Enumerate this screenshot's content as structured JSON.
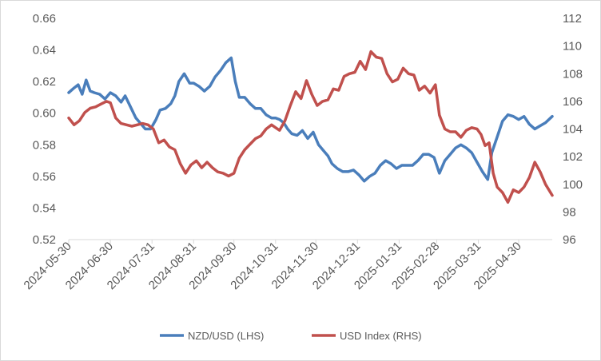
{
  "chart_data": {
    "type": "line",
    "title": "",
    "xlabel": "",
    "ylabel_left": "",
    "ylabel_right": "",
    "y_left_lim": [
      0.52,
      0.66
    ],
    "y_right_lim": [
      96,
      112
    ],
    "y_left_ticks": [
      "0.52",
      "0.54",
      "0.56",
      "0.58",
      "0.60",
      "0.62",
      "0.64",
      "0.66"
    ],
    "y_right_ticks": [
      "96",
      "98",
      "100",
      "102",
      "104",
      "106",
      "108",
      "110",
      "112"
    ],
    "x_lim": [
      "2024-05-30",
      "2025-05-25"
    ],
    "x_ticks": [
      "2024-05-30",
      "2024-06-30",
      "2024-07-31",
      "2024-08-31",
      "2024-09-30",
      "2024-10-31",
      "2024-11-30",
      "2024-12-31",
      "2025-01-31",
      "2025-02-28",
      "2025-03-31",
      "2025-04-30"
    ],
    "grid": false,
    "legend_position": "bottom",
    "series": [
      {
        "name": "NZD/USD (LHS)",
        "axis": "left",
        "color": "#4a7ebb",
        "points": [
          [
            "2024-05-30",
            0.613
          ],
          [
            "2024-06-03",
            0.616
          ],
          [
            "2024-06-06",
            0.618
          ],
          [
            "2024-06-09",
            0.612
          ],
          [
            "2024-06-12",
            0.621
          ],
          [
            "2024-06-15",
            0.614
          ],
          [
            "2024-06-18",
            0.613
          ],
          [
            "2024-06-22",
            0.612
          ],
          [
            "2024-06-26",
            0.609
          ],
          [
            "2024-06-30",
            0.613
          ],
          [
            "2024-07-04",
            0.611
          ],
          [
            "2024-07-08",
            0.607
          ],
          [
            "2024-07-11",
            0.611
          ],
          [
            "2024-07-15",
            0.604
          ],
          [
            "2024-07-19",
            0.597
          ],
          [
            "2024-07-22",
            0.594
          ],
          [
            "2024-07-26",
            0.59
          ],
          [
            "2024-07-30",
            0.59
          ],
          [
            "2024-08-03",
            0.596
          ],
          [
            "2024-08-06",
            0.602
          ],
          [
            "2024-08-10",
            0.603
          ],
          [
            "2024-08-14",
            0.606
          ],
          [
            "2024-08-17",
            0.611
          ],
          [
            "2024-08-20",
            0.62
          ],
          [
            "2024-08-24",
            0.625
          ],
          [
            "2024-08-28",
            0.619
          ],
          [
            "2024-08-31",
            0.619
          ],
          [
            "2024-09-04",
            0.617
          ],
          [
            "2024-09-08",
            0.614
          ],
          [
            "2024-09-12",
            0.617
          ],
          [
            "2024-09-16",
            0.623
          ],
          [
            "2024-09-20",
            0.627
          ],
          [
            "2024-09-24",
            0.632
          ],
          [
            "2024-09-28",
            0.635
          ],
          [
            "2024-10-01",
            0.62
          ],
          [
            "2024-10-04",
            0.61
          ],
          [
            "2024-10-08",
            0.61
          ],
          [
            "2024-10-12",
            0.606
          ],
          [
            "2024-10-16",
            0.603
          ],
          [
            "2024-10-20",
            0.603
          ],
          [
            "2024-10-24",
            0.599
          ],
          [
            "2024-10-28",
            0.597
          ],
          [
            "2024-10-31",
            0.597
          ],
          [
            "2024-11-03",
            0.596
          ],
          [
            "2024-11-06",
            0.594
          ],
          [
            "2024-11-09",
            0.59
          ],
          [
            "2024-11-12",
            0.587
          ],
          [
            "2024-11-16",
            0.586
          ],
          [
            "2024-11-20",
            0.589
          ],
          [
            "2024-11-24",
            0.584
          ],
          [
            "2024-11-28",
            0.588
          ],
          [
            "2024-12-02",
            0.58
          ],
          [
            "2024-12-06",
            0.576
          ],
          [
            "2024-12-09",
            0.573
          ],
          [
            "2024-12-12",
            0.568
          ],
          [
            "2024-12-16",
            0.565
          ],
          [
            "2024-12-20",
            0.563
          ],
          [
            "2024-12-24",
            0.563
          ],
          [
            "2024-12-28",
            0.564
          ],
          [
            "2025-01-01",
            0.561
          ],
          [
            "2025-01-05",
            0.557
          ],
          [
            "2025-01-09",
            0.56
          ],
          [
            "2025-01-13",
            0.562
          ],
          [
            "2025-01-17",
            0.567
          ],
          [
            "2025-01-21",
            0.57
          ],
          [
            "2025-01-25",
            0.568
          ],
          [
            "2025-01-29",
            0.565
          ],
          [
            "2025-02-02",
            0.567
          ],
          [
            "2025-02-06",
            0.567
          ],
          [
            "2025-02-10",
            0.567
          ],
          [
            "2025-02-14",
            0.57
          ],
          [
            "2025-02-18",
            0.574
          ],
          [
            "2025-02-22",
            0.574
          ],
          [
            "2025-02-26",
            0.572
          ],
          [
            "2025-03-02",
            0.562
          ],
          [
            "2025-03-06",
            0.57
          ],
          [
            "2025-03-10",
            0.574
          ],
          [
            "2025-03-14",
            0.578
          ],
          [
            "2025-03-18",
            0.58
          ],
          [
            "2025-03-22",
            0.578
          ],
          [
            "2025-03-26",
            0.575
          ],
          [
            "2025-03-30",
            0.569
          ],
          [
            "2025-04-03",
            0.563
          ],
          [
            "2025-04-07",
            0.558
          ],
          [
            "2025-04-10",
            0.575
          ],
          [
            "2025-04-14",
            0.585
          ],
          [
            "2025-04-18",
            0.595
          ],
          [
            "2025-04-22",
            0.599
          ],
          [
            "2025-04-26",
            0.598
          ],
          [
            "2025-04-30",
            0.596
          ],
          [
            "2025-05-04",
            0.598
          ],
          [
            "2025-05-08",
            0.593
          ],
          [
            "2025-05-12",
            0.59
          ],
          [
            "2025-05-16",
            0.592
          ],
          [
            "2025-05-20",
            0.594
          ],
          [
            "2025-05-25",
            0.598
          ]
        ]
      },
      {
        "name": "USD Index (RHS)",
        "axis": "right",
        "color": "#c0504d",
        "points": [
          [
            "2024-05-30",
            104.8
          ],
          [
            "2024-06-03",
            104.3
          ],
          [
            "2024-06-07",
            104.6
          ],
          [
            "2024-06-11",
            105.2
          ],
          [
            "2024-06-15",
            105.5
          ],
          [
            "2024-06-19",
            105.6
          ],
          [
            "2024-06-23",
            105.8
          ],
          [
            "2024-06-27",
            106.0
          ],
          [
            "2024-06-30",
            105.9
          ],
          [
            "2024-07-04",
            104.8
          ],
          [
            "2024-07-08",
            104.4
          ],
          [
            "2024-07-12",
            104.3
          ],
          [
            "2024-07-16",
            104.2
          ],
          [
            "2024-07-20",
            104.3
          ],
          [
            "2024-07-24",
            104.4
          ],
          [
            "2024-07-28",
            104.3
          ],
          [
            "2024-08-01",
            104.0
          ],
          [
            "2024-08-05",
            103.0
          ],
          [
            "2024-08-09",
            103.2
          ],
          [
            "2024-08-13",
            102.7
          ],
          [
            "2024-08-17",
            102.5
          ],
          [
            "2024-08-21",
            101.5
          ],
          [
            "2024-08-25",
            100.8
          ],
          [
            "2024-08-29",
            101.4
          ],
          [
            "2024-09-02",
            101.7
          ],
          [
            "2024-09-06",
            101.2
          ],
          [
            "2024-09-10",
            101.6
          ],
          [
            "2024-09-14",
            101.2
          ],
          [
            "2024-09-18",
            100.9
          ],
          [
            "2024-09-22",
            100.8
          ],
          [
            "2024-09-26",
            100.6
          ],
          [
            "2024-09-30",
            100.8
          ],
          [
            "2024-10-04",
            101.9
          ],
          [
            "2024-10-08",
            102.5
          ],
          [
            "2024-10-12",
            102.9
          ],
          [
            "2024-10-16",
            103.3
          ],
          [
            "2024-10-20",
            103.5
          ],
          [
            "2024-10-24",
            104.0
          ],
          [
            "2024-10-28",
            104.3
          ],
          [
            "2024-10-31",
            104.1
          ],
          [
            "2024-11-03",
            103.9
          ],
          [
            "2024-11-07",
            104.6
          ],
          [
            "2024-11-11",
            105.7
          ],
          [
            "2024-11-15",
            106.7
          ],
          [
            "2024-11-19",
            106.2
          ],
          [
            "2024-11-23",
            107.5
          ],
          [
            "2024-11-27",
            106.5
          ],
          [
            "2024-12-01",
            105.7
          ],
          [
            "2024-12-05",
            106.0
          ],
          [
            "2024-12-09",
            106.1
          ],
          [
            "2024-12-13",
            106.9
          ],
          [
            "2024-12-17",
            106.8
          ],
          [
            "2024-12-21",
            107.8
          ],
          [
            "2024-12-25",
            108.0
          ],
          [
            "2024-12-29",
            108.1
          ],
          [
            "2025-01-02",
            108.9
          ],
          [
            "2025-01-06",
            108.3
          ],
          [
            "2025-01-10",
            109.6
          ],
          [
            "2025-01-14",
            109.2
          ],
          [
            "2025-01-18",
            109.1
          ],
          [
            "2025-01-22",
            108.0
          ],
          [
            "2025-01-26",
            107.4
          ],
          [
            "2025-01-30",
            107.6
          ],
          [
            "2025-02-03",
            108.4
          ],
          [
            "2025-02-07",
            108.0
          ],
          [
            "2025-02-11",
            107.9
          ],
          [
            "2025-02-15",
            106.8
          ],
          [
            "2025-02-19",
            107.1
          ],
          [
            "2025-02-23",
            106.6
          ],
          [
            "2025-02-27",
            107.2
          ],
          [
            "2025-03-02",
            105.0
          ],
          [
            "2025-03-06",
            104.0
          ],
          [
            "2025-03-10",
            103.8
          ],
          [
            "2025-03-14",
            103.8
          ],
          [
            "2025-03-18",
            103.4
          ],
          [
            "2025-03-22",
            103.9
          ],
          [
            "2025-03-26",
            104.1
          ],
          [
            "2025-03-30",
            104.0
          ],
          [
            "2025-04-02",
            103.6
          ],
          [
            "2025-04-05",
            102.8
          ],
          [
            "2025-04-08",
            103.0
          ],
          [
            "2025-04-11",
            100.8
          ],
          [
            "2025-04-14",
            99.8
          ],
          [
            "2025-04-18",
            99.4
          ],
          [
            "2025-04-22",
            98.7
          ],
          [
            "2025-04-26",
            99.6
          ],
          [
            "2025-04-30",
            99.4
          ],
          [
            "2025-05-04",
            99.8
          ],
          [
            "2025-05-08",
            100.5
          ],
          [
            "2025-05-12",
            101.6
          ],
          [
            "2025-05-16",
            100.9
          ],
          [
            "2025-05-20",
            100.0
          ],
          [
            "2025-05-25",
            99.2
          ]
        ]
      }
    ]
  }
}
